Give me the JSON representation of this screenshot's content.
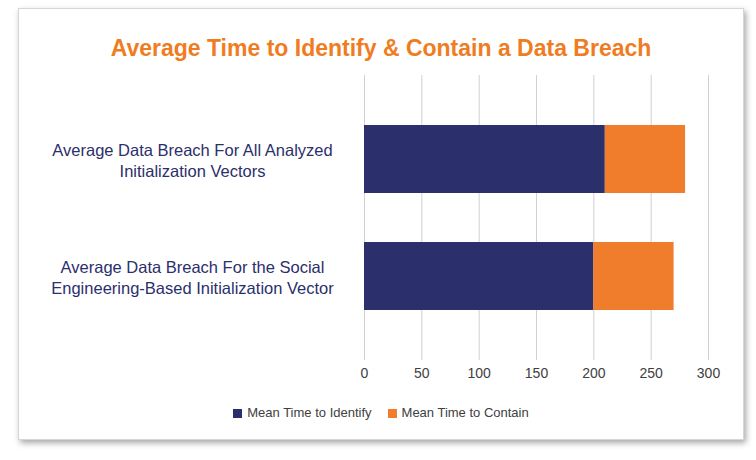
{
  "chart_data": {
    "type": "bar",
    "title": "Average Time to Identify & Contain a Data Breach",
    "orientation": "horizontal",
    "stacked": true,
    "categories": [
      "Average Data Breach For All Analyzed Initialization Vectors",
      "Average Data Breach For the Social Engineering-Based Initialization Vector"
    ],
    "series": [
      {
        "name": "Mean Time to Identify",
        "color": "#2b2f6b",
        "values": [
          210,
          200
        ]
      },
      {
        "name": "Mean Time to Contain",
        "color": "#ef7d2b",
        "values": [
          70,
          70
        ]
      }
    ],
    "xlim": [
      0,
      300
    ],
    "xticks": [
      0,
      50,
      100,
      150,
      200,
      250,
      300
    ],
    "grid": true,
    "legend": "bottom"
  }
}
